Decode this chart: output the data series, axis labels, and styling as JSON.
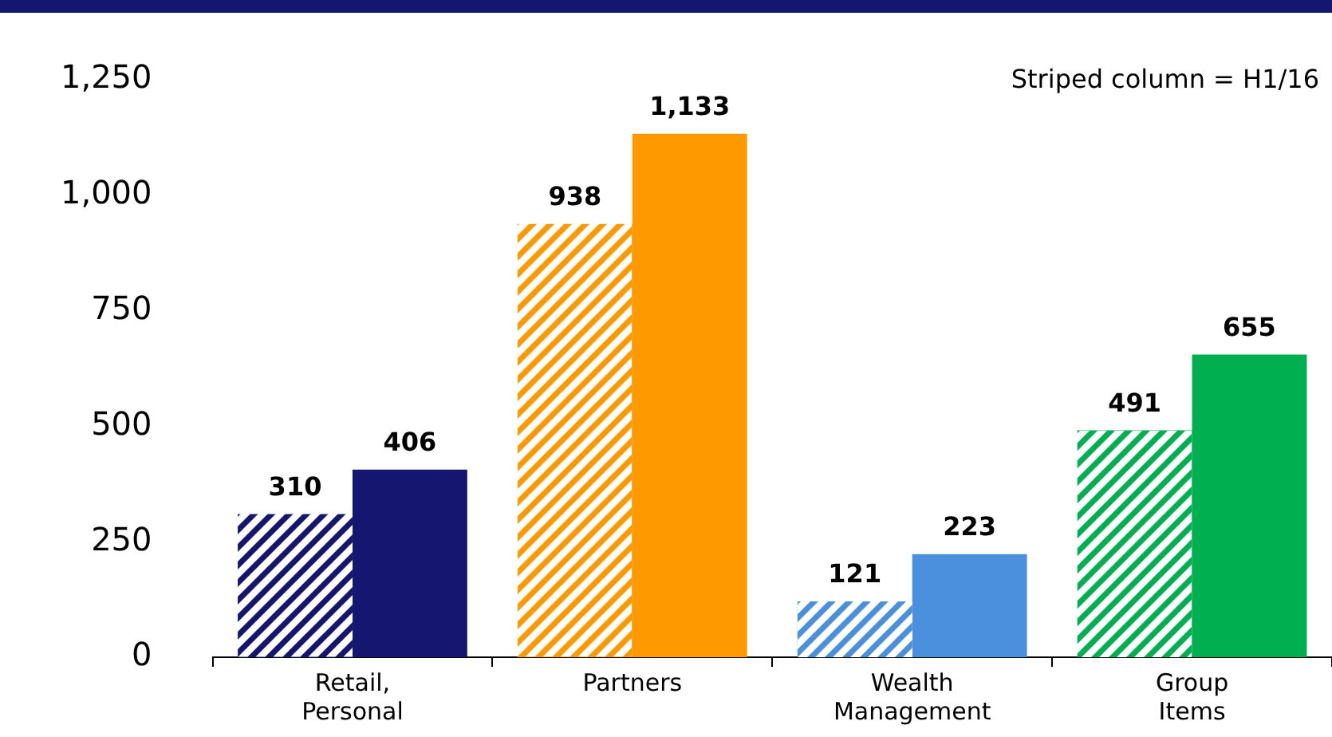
{
  "chart_data": {
    "type": "bar",
    "categories": [
      "Retail, Personal",
      "Partners",
      "Wealth Management",
      "Group Items"
    ],
    "series": [
      {
        "colors": [
          "#141670",
          "#ff9900",
          "#4a90dc",
          "#00b050"
        ],
        "values": [
          310,
          938,
          121,
          491
        ],
        "value_labels": [
          "310",
          "938",
          "121",
          "491"
        ]
      },
      {
        "colors": [
          "#141670",
          "#ff9900",
          "#4a90dc",
          "#00b050"
        ],
        "values": [
          406,
          1133,
          223,
          655
        ],
        "value_labels": [
          "406",
          "1,133",
          "223",
          "655"
        ]
      }
    ],
    "ylim": [
      0,
      1250
    ],
    "yticks": [
      0,
      250,
      500,
      750,
      {
        "value": 1000,
        "label": "1,000"
      },
      {
        "value": 1250,
        "label": "1,250"
      }
    ],
    "grid": false,
    "legend": false,
    "annotations": [
      "Striped column = H1/16"
    ]
  }
}
